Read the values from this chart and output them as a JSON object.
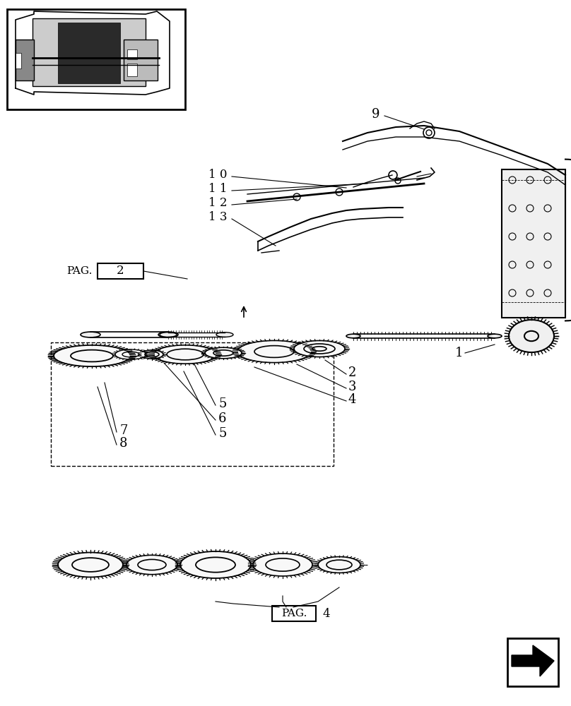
{
  "bg_color": "#ffffff",
  "line_color": "#000000",
  "light_gray": "#aaaaaa",
  "mid_gray": "#666666",
  "title": ""
}
